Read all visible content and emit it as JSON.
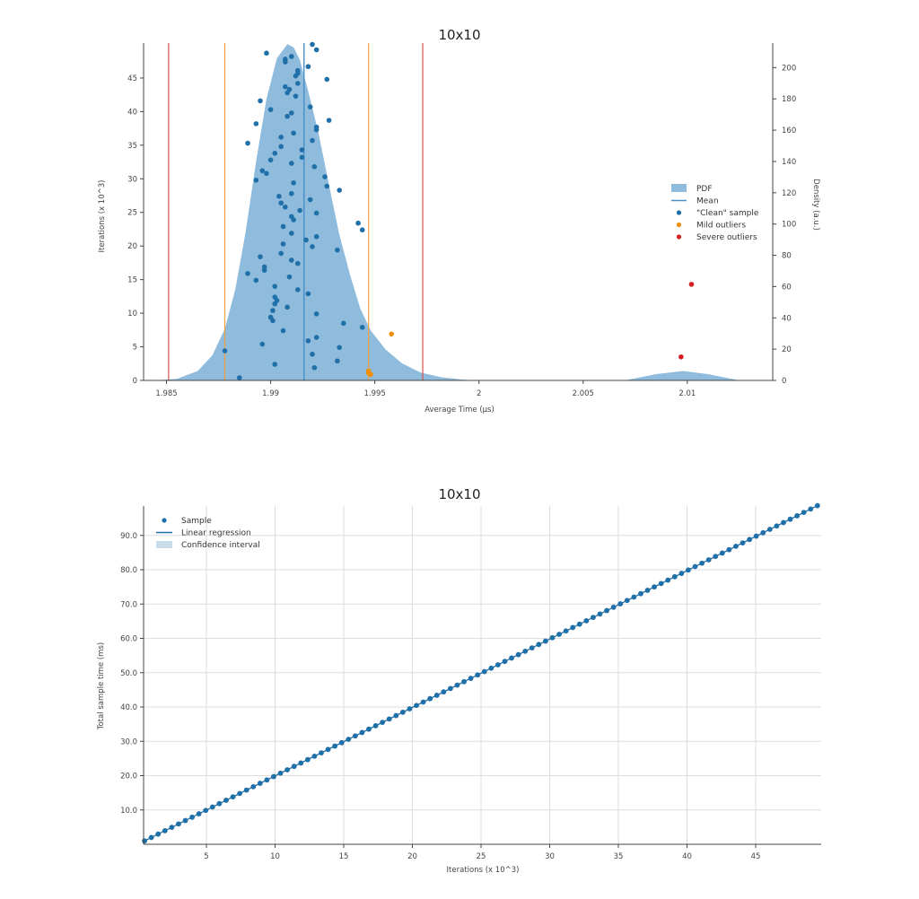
{
  "chart_data": [
    {
      "id": "pdf",
      "type": "area",
      "title": "10x10",
      "xlabel": "Average Time (µs)",
      "ylabel": "Iterations (x 10^3)",
      "y2label": "Density (a.u.)",
      "xlim": [
        1.9839,
        2.0141
      ],
      "ylim": [
        0,
        50.2
      ],
      "y2lim": [
        0,
        215.7
      ],
      "xticks": [
        1.985,
        1.99,
        1.995,
        2,
        2.005,
        2.01
      ],
      "xtick_labels": [
        "1.985",
        "1.99",
        "1.995",
        "2",
        "2.005",
        "2.01"
      ],
      "yticks": [
        0,
        5,
        10,
        15,
        20,
        25,
        30,
        35,
        40,
        45
      ],
      "y2ticks": [
        0,
        20,
        40,
        60,
        80,
        100,
        120,
        140,
        160,
        180,
        200
      ],
      "grid": false,
      "legend_position": "right-center",
      "legend": [
        {
          "label": "PDF",
          "kind": "area",
          "color": "#8fbbdc"
        },
        {
          "label": "Mean",
          "kind": "line",
          "color": "#4a90c8"
        },
        {
          "label": "\"Clean\" sample",
          "kind": "dot",
          "color": "#1f6fa8"
        },
        {
          "label": "Mild outliers",
          "kind": "dot",
          "color": "#f0900c"
        },
        {
          "label": "Severe outliers",
          "kind": "dot",
          "color": "#d41f1f"
        }
      ],
      "mean": 1.9916,
      "mild_outlier_bounds": [
        1.9878,
        1.9947
      ],
      "severe_outlier_bounds": [
        1.9851,
        1.9973
      ],
      "pdf_curve": {
        "x": [
          1.9845,
          1.9855,
          1.9865,
          1.9872,
          1.9878,
          1.9883,
          1.9888,
          1.9893,
          1.9898,
          1.9903,
          1.9908,
          1.9911,
          1.9914,
          1.9918,
          1.9923,
          1.9928,
          1.9933,
          1.9938,
          1.9943,
          1.9948,
          1.9955,
          1.9963,
          1.9972,
          1.9982,
          1.9992,
          2.0,
          2.007,
          2.0085,
          2.0098,
          2.011,
          2.0125
        ],
        "density": [
          0,
          1,
          6,
          16,
          33,
          58,
          95,
          140,
          180,
          206,
          215,
          213,
          205,
          185,
          158,
          125,
          93,
          68,
          46,
          32,
          20,
          11,
          5,
          2,
          0.5,
          0,
          0,
          4,
          6,
          4,
          0
        ]
      },
      "series": [
        {
          "name": "\"Clean\" sample",
          "color": "#1f6fa8",
          "points": [
            [
              1.992,
              50.0
            ],
            [
              1.9922,
              49.2
            ],
            [
              1.9898,
              48.7
            ],
            [
              1.991,
              48.2
            ],
            [
              1.9907,
              47.8
            ],
            [
              1.9907,
              47.4
            ],
            [
              1.9918,
              46.7
            ],
            [
              1.9913,
              46.1
            ],
            [
              1.9913,
              45.7
            ],
            [
              1.9912,
              45.3
            ],
            [
              1.9927,
              44.8
            ],
            [
              1.9913,
              44.2
            ],
            [
              1.9912,
              42.3
            ],
            [
              1.9907,
              43.7
            ],
            [
              1.9909,
              43.3
            ],
            [
              1.9908,
              42.8
            ],
            [
              1.9895,
              41.6
            ],
            [
              1.99,
              40.3
            ],
            [
              1.9919,
              40.7
            ],
            [
              1.991,
              39.8
            ],
            [
              1.9908,
              39.3
            ],
            [
              1.9928,
              38.7
            ],
            [
              1.9893,
              38.2
            ],
            [
              1.9922,
              37.7
            ],
            [
              1.9922,
              37.3
            ],
            [
              1.9911,
              36.8
            ],
            [
              1.9905,
              36.2
            ],
            [
              1.992,
              35.7
            ],
            [
              1.9889,
              35.3
            ],
            [
              1.9915,
              34.3
            ],
            [
              1.9905,
              34.8
            ],
            [
              1.9902,
              33.8
            ],
            [
              1.9915,
              33.2
            ],
            [
              1.991,
              32.3
            ],
            [
              1.99,
              32.8
            ],
            [
              1.9921,
              31.8
            ],
            [
              1.9896,
              31.2
            ],
            [
              1.9898,
              30.8
            ],
            [
              1.9926,
              30.3
            ],
            [
              1.9893,
              29.8
            ],
            [
              1.9911,
              29.4
            ],
            [
              1.9927,
              28.9
            ],
            [
              1.9933,
              28.3
            ],
            [
              1.991,
              27.8
            ],
            [
              1.9919,
              26.9
            ],
            [
              1.9904,
              27.4
            ],
            [
              1.9905,
              26.4
            ],
            [
              1.9907,
              25.8
            ],
            [
              1.9914,
              25.3
            ],
            [
              1.9922,
              24.9
            ],
            [
              1.9942,
              23.4
            ],
            [
              1.9944,
              22.4
            ],
            [
              1.991,
              24.4
            ],
            [
              1.9911,
              23.9
            ],
            [
              1.9906,
              22.9
            ],
            [
              1.991,
              21.9
            ],
            [
              1.9922,
              21.4
            ],
            [
              1.9917,
              20.9
            ],
            [
              1.992,
              19.9
            ],
            [
              1.9906,
              20.3
            ],
            [
              1.9932,
              19.4
            ],
            [
              1.9905,
              18.9
            ],
            [
              1.9895,
              18.4
            ],
            [
              1.991,
              17.9
            ],
            [
              1.9913,
              17.4
            ],
            [
              1.9897,
              16.9
            ],
            [
              1.9897,
              16.4
            ],
            [
              1.9889,
              15.9
            ],
            [
              1.9893,
              14.9
            ],
            [
              1.9909,
              15.4
            ],
            [
              1.9902,
              14.0
            ],
            [
              1.9913,
              13.5
            ],
            [
              1.9918,
              12.9
            ],
            [
              1.9902,
              12.4
            ],
            [
              1.9903,
              11.9
            ],
            [
              1.9902,
              11.4
            ],
            [
              1.9908,
              10.9
            ],
            [
              1.9901,
              10.4
            ],
            [
              1.9922,
              9.9
            ],
            [
              1.99,
              9.4
            ],
            [
              1.9901,
              8.9
            ],
            [
              1.9935,
              8.5
            ],
            [
              1.9944,
              7.9
            ],
            [
              1.9906,
              7.4
            ],
            [
              1.9922,
              6.4
            ],
            [
              1.9918,
              5.9
            ],
            [
              1.9896,
              5.4
            ],
            [
              1.9933,
              4.9
            ],
            [
              1.9878,
              4.4
            ],
            [
              1.992,
              3.9
            ],
            [
              1.9932,
              2.9
            ],
            [
              1.9902,
              2.4
            ],
            [
              1.9921,
              1.9
            ],
            [
              1.9885,
              0.4
            ]
          ]
        },
        {
          "name": "Mild outliers",
          "color": "#f0900c",
          "points": [
            [
              1.9958,
              6.9
            ],
            [
              1.9947,
              1.4
            ],
            [
              1.9947,
              1.1
            ],
            [
              1.9948,
              0.9
            ]
          ]
        },
        {
          "name": "Severe outliers",
          "color": "#d41f1f",
          "points": [
            [
              2.0102,
              14.3
            ],
            [
              2.0097,
              3.5
            ]
          ]
        }
      ]
    },
    {
      "id": "regression",
      "type": "scatter",
      "title": "10x10",
      "xlabel": "Iterations (x 10^3)",
      "ylabel": "Total sample time (ms)",
      "xlim": [
        0.45,
        49.8
      ],
      "ylim": [
        0,
        98.5
      ],
      "xticks": [
        5,
        10,
        15,
        20,
        25,
        30,
        35,
        40,
        45
      ],
      "xtick_labels": [
        "5",
        "10",
        "15",
        "20",
        "25",
        "30",
        "35",
        "40",
        "45"
      ],
      "yticks": [
        10,
        20,
        30,
        40,
        50,
        60,
        70,
        80,
        90
      ],
      "ytick_labels": [
        "10.0",
        "20.0",
        "30.0",
        "40.0",
        "50.0",
        "60.0",
        "70.0",
        "80.0",
        "90.0"
      ],
      "grid": true,
      "legend_position": "upper-left",
      "legend": [
        {
          "label": "Sample",
          "kind": "dot",
          "color": "#1f6fa8"
        },
        {
          "label": "Linear regression",
          "kind": "line",
          "color": "#1f6fa8"
        },
        {
          "label": "Confidence interval",
          "kind": "area",
          "color": "#c8dcea"
        }
      ],
      "series": [
        {
          "name": "Sample",
          "color": "#1f6fa8",
          "x_start": 0.495,
          "x_step": 0.495,
          "count": 100,
          "slope_ms_per_kiter": 1.9934,
          "note_values": "y = slope * x; x from 0.495 to 49.5 (x10^3 iterations), y from ~1.0 to ~98.7 ms"
        }
      ],
      "regression": {
        "slope": 1.9934,
        "intercept": 0
      }
    }
  ]
}
